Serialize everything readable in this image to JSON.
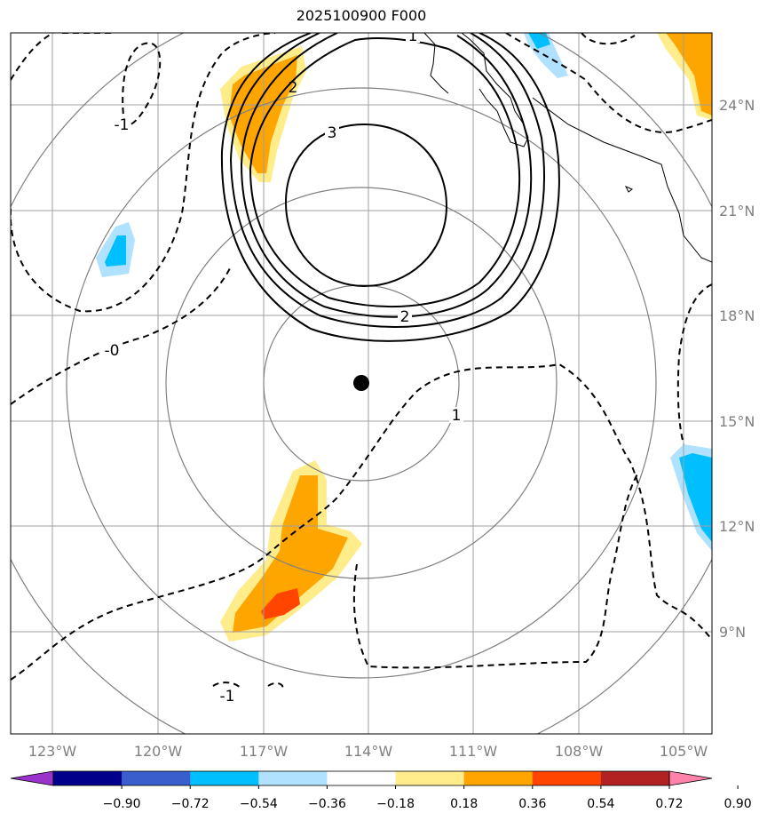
{
  "title": "2025100900 F000",
  "map": {
    "lon_ticks": [
      "123°W",
      "120°W",
      "117°W",
      "114°W",
      "111°W",
      "108°W",
      "105°W"
    ],
    "lat_ticks": [
      "24°N",
      "21°N",
      "18°N",
      "15°N",
      "12°N",
      "9°N"
    ],
    "storm_center": {
      "lon": "114.1°W",
      "lat": "16.1°N"
    },
    "contour_labels": {
      "solid": [
        "1",
        "2",
        "3",
        "2"
      ],
      "dashed": [
        "-0",
        "1",
        "-1",
        "-1"
      ]
    }
  },
  "colorbar": {
    "ticks": [
      "−0.90",
      "−0.72",
      "−0.54",
      "−0.36",
      "−0.18",
      "0.18",
      "0.36",
      "0.54",
      "0.72",
      "0.90"
    ],
    "colors": [
      "#9933cc",
      "#00008b",
      "#3a5fcd",
      "#00bfff",
      "#b0e2ff",
      "#ffffff",
      "#ffec8b",
      "#ffa500",
      "#ff4500",
      "#b22222",
      "#ff82ab"
    ]
  }
}
